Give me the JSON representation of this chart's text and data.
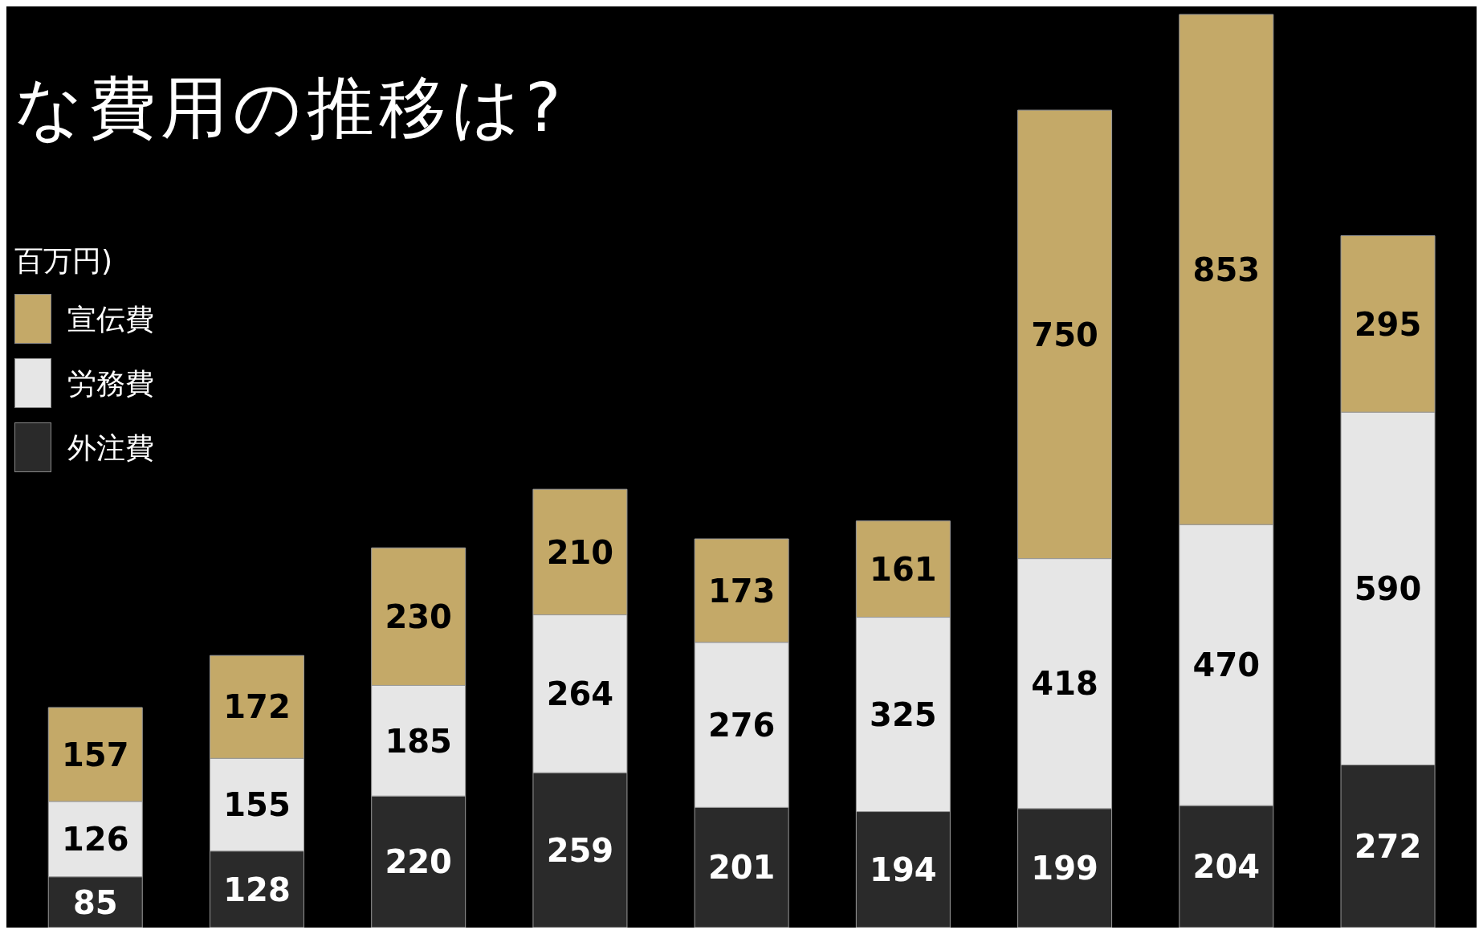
{
  "chart_data": {
    "type": "bar",
    "title": "な費用の推移は?",
    "legend_title": "百万円)",
    "stacked": true,
    "data_labels": true,
    "legend": "top left",
    "categories": [
      null,
      null,
      null,
      null,
      null,
      null,
      null,
      null,
      null
    ],
    "series": [
      {
        "name": "外注費",
        "color": "#2a2a2a",
        "values": [
          85,
          128,
          220,
          259,
          201,
          194,
          199,
          204,
          272
        ]
      },
      {
        "name": "労務費",
        "color": "#e6e6e6",
        "values": [
          126,
          155,
          185,
          264,
          276,
          325,
          418,
          470,
          590
        ]
      },
      {
        "name": "宣伝費",
        "color": "#c4a968",
        "values": [
          157,
          172,
          230,
          210,
          173,
          161,
          750,
          853,
          295
        ]
      }
    ]
  }
}
